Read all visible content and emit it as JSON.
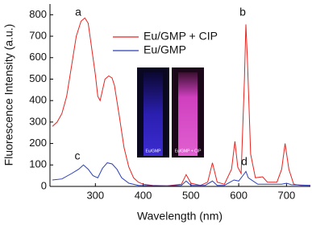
{
  "chart_data": {
    "type": "line",
    "xlabel": "Wavelength (nm)",
    "ylabel": "Fluorescence Intensity (a.u.)",
    "xlim": [
      205,
      750
    ],
    "ylim": [
      0,
      850
    ],
    "xticks": [
      300,
      400,
      500,
      600,
      700
    ],
    "yticks": [
      0,
      100,
      200,
      300,
      400,
      500,
      600,
      700,
      800
    ],
    "legend": "top",
    "annotations": [
      "a",
      "b",
      "c",
      "d"
    ],
    "inset_labels": [
      "Eu/GMP",
      "Eu/GMP + CIP"
    ],
    "series": [
      {
        "name": "Eu/GMP + CIP",
        "color": "#e8231f",
        "x": [
          210,
          220,
          230,
          240,
          250,
          260,
          270,
          278,
          285,
          290,
          300,
          305,
          310,
          315,
          320,
          328,
          335,
          340,
          350,
          360,
          370,
          380,
          390,
          400,
          420,
          450,
          480,
          490,
          500,
          520,
          535,
          545,
          555,
          570,
          585,
          592,
          598,
          605,
          612,
          615,
          618,
          625,
          635,
          650,
          660,
          680,
          690,
          697,
          705,
          715,
          730,
          750
        ],
        "values": [
          280,
          300,
          340,
          420,
          560,
          700,
          770,
          785,
          760,
          680,
          520,
          420,
          400,
          450,
          500,
          515,
          505,
          470,
          330,
          180,
          90,
          40,
          20,
          10,
          5,
          3,
          10,
          55,
          15,
          5,
          20,
          110,
          20,
          10,
          80,
          210,
          90,
          60,
          500,
          755,
          600,
          150,
          40,
          45,
          20,
          20,
          80,
          200,
          80,
          10,
          5,
          5
        ]
      },
      {
        "name": "Eu/GMP",
        "color": "#2b3fb8",
        "x": [
          210,
          230,
          250,
          265,
          275,
          285,
          295,
          305,
          315,
          325,
          335,
          345,
          355,
          370,
          390,
          450,
          480,
          490,
          500,
          530,
          545,
          555,
          570,
          590,
          600,
          612,
          615,
          620,
          640,
          690,
          700,
          710,
          750
        ],
        "values": [
          30,
          35,
          60,
          80,
          100,
          80,
          50,
          40,
          85,
          110,
          105,
          80,
          40,
          15,
          5,
          3,
          5,
          25,
          5,
          5,
          25,
          5,
          5,
          30,
          25,
          60,
          70,
          40,
          10,
          10,
          15,
          8,
          5
        ]
      }
    ]
  }
}
